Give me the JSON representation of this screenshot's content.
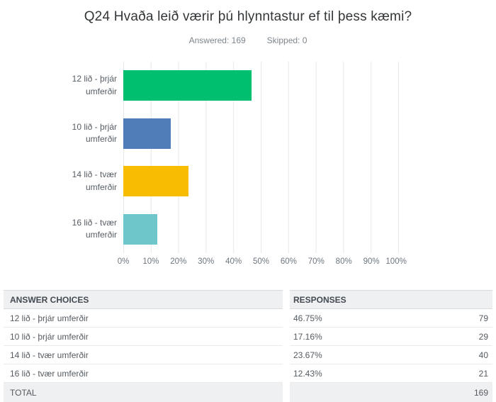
{
  "header": {
    "title": "Q24 Hvaða leið værir þú hlynntastur ef til þess kæmi?",
    "answered": "Answered: 169",
    "skipped": "Skipped: 0"
  },
  "chart_data": {
    "type": "bar",
    "orientation": "horizontal",
    "categories": [
      "12 lið - þrjár umferðir",
      "10 lið - þrjár umferðir",
      "14 lið - tvær umferðir",
      "16 lið - tvær umferðir"
    ],
    "values": [
      46.75,
      17.16,
      23.67,
      12.43
    ],
    "bar_colors": [
      "#00BF6F",
      "#507CB8",
      "#F8BD00",
      "#6EC6CB"
    ],
    "xlim": [
      0,
      100
    ],
    "grid": true,
    "x_tick_labels": [
      "0%",
      "10%",
      "20%",
      "30%",
      "40%",
      "50%",
      "60%",
      "70%",
      "80%",
      "90%",
      "100%"
    ]
  },
  "chart_labels": {
    "rows": [
      {
        "line1": "12 lið - þrjár",
        "line2": "umferðir"
      },
      {
        "line1": "10 lið - þrjár",
        "line2": "umferðir"
      },
      {
        "line1": "14 lið - tvær",
        "line2": "umferðir"
      },
      {
        "line1": "16 lið - tvær",
        "line2": "umferðir"
      }
    ]
  },
  "table": {
    "headers": [
      "ANSWER CHOICES",
      "RESPONSES"
    ],
    "rows": [
      {
        "choice": "12 lið - þrjár umferðir",
        "percent": "46.75%",
        "count": "79"
      },
      {
        "choice": "10 lið - þrjár umferðir",
        "percent": "17.16%",
        "count": "29"
      },
      {
        "choice": "14 lið - tvær umferðir",
        "percent": "23.67%",
        "count": "40"
      },
      {
        "choice": "16 lið - tvær umferðir",
        "percent": "12.43%",
        "count": "21"
      }
    ],
    "total_label": "TOTAL",
    "total_count": "169"
  }
}
